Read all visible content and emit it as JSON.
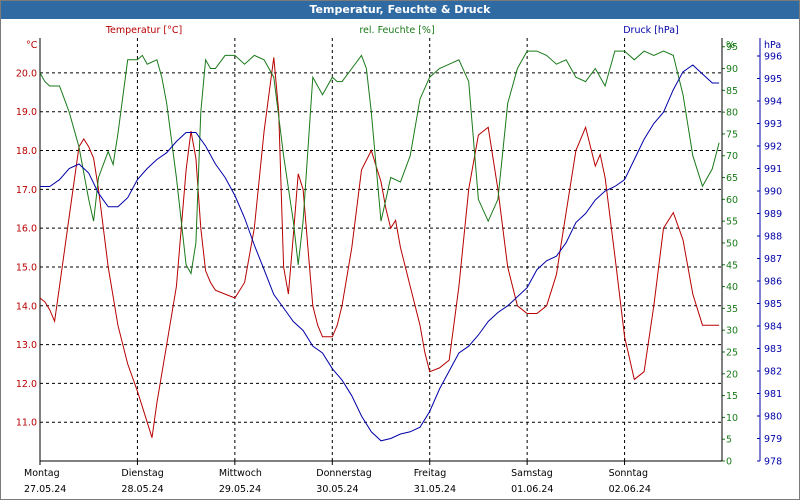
{
  "window": {
    "title": "Temperatur, Feuchte & Druck"
  },
  "colors": {
    "temperature": "#b80000",
    "humidity": "#1a7a1a",
    "pressure": "#0000a8",
    "grid": "#000000",
    "title_bg": "#2f6aa3"
  },
  "chart_data": {
    "type": "line",
    "title": "Temperatur, Feuchte & Druck",
    "x_days": [
      {
        "weekday": "Montag",
        "date": "27.05.24"
      },
      {
        "weekday": "Dienstag",
        "date": "28.05.24"
      },
      {
        "weekday": "Mittwoch",
        "date": "29.05.24"
      },
      {
        "weekday": "Donnerstag",
        "date": "30.05.24"
      },
      {
        "weekday": "Freitag",
        "date": "31.05.24"
      },
      {
        "weekday": "Samstag",
        "date": "01.06.24"
      },
      {
        "weekday": "Sonntag",
        "date": "02.06.24"
      }
    ],
    "xlim": [
      0,
      7
    ],
    "axes": {
      "temperature": {
        "label": "Temperatur [°C]",
        "unit": "°C",
        "ylim": [
          10.0,
          20.9
        ],
        "ticks": [
          "11.0",
          "12.0",
          "13.0",
          "14.0",
          "15.0",
          "16.0",
          "17.0",
          "18.0",
          "19.0",
          "20.0"
        ]
      },
      "humidity": {
        "label": "rel. Feuchte [%]",
        "unit": "%",
        "ylim": [
          0,
          97
        ],
        "ticks": [
          "0",
          "5",
          "10",
          "15",
          "20",
          "25",
          "30",
          "35",
          "40",
          "45",
          "50",
          "55",
          "60",
          "65",
          "70",
          "75",
          "80",
          "85",
          "90",
          "95"
        ]
      },
      "pressure": {
        "label": "Druck [hPa]",
        "unit": "hPa",
        "ylim": [
          978,
          996.8
        ],
        "ticks": [
          "978",
          "979",
          "980",
          "981",
          "982",
          "983",
          "984",
          "985",
          "986",
          "987",
          "988",
          "989",
          "990",
          "991",
          "992",
          "993",
          "994",
          "995",
          "996"
        ]
      }
    },
    "series": [
      {
        "name": "Temperatur",
        "axis": "temperature",
        "x": [
          0,
          0.05,
          0.1,
          0.15,
          0.2,
          0.3,
          0.4,
          0.45,
          0.5,
          0.55,
          0.6,
          0.7,
          0.8,
          0.9,
          1.0,
          1.1,
          1.15,
          1.2,
          1.3,
          1.4,
          1.5,
          1.55,
          1.6,
          1.65,
          1.7,
          1.75,
          1.8,
          1.9,
          2.0,
          2.1,
          2.2,
          2.3,
          2.4,
          2.45,
          2.5,
          2.55,
          2.6,
          2.65,
          2.7,
          2.75,
          2.8,
          2.85,
          2.9,
          3.0,
          3.05,
          3.1,
          3.2,
          3.3,
          3.4,
          3.45,
          3.5,
          3.55,
          3.6,
          3.65,
          3.7,
          3.8,
          3.9,
          3.95,
          4.0,
          4.1,
          4.2,
          4.3,
          4.4,
          4.5,
          4.6,
          4.7,
          4.8,
          4.9,
          5.0,
          5.1,
          5.2,
          5.3,
          5.35,
          5.4,
          5.5,
          5.6,
          5.7,
          5.75,
          5.8,
          5.9,
          6.0,
          6.1,
          6.2,
          6.3,
          6.4,
          6.5,
          6.6,
          6.7,
          6.8,
          6.9,
          6.97
        ],
        "values": [
          14.2,
          14.1,
          13.9,
          13.6,
          14.5,
          16.3,
          18.1,
          18.3,
          18.1,
          17.8,
          17.0,
          15.0,
          13.5,
          12.5,
          11.8,
          11.0,
          10.6,
          11.5,
          13.0,
          14.5,
          17.5,
          18.5,
          17.8,
          16.0,
          14.9,
          14.6,
          14.4,
          14.3,
          14.2,
          14.6,
          16.0,
          18.5,
          20.4,
          19.0,
          15.0,
          14.3,
          15.8,
          17.4,
          17.0,
          15.5,
          14.0,
          13.5,
          13.2,
          13.2,
          13.5,
          14.0,
          15.5,
          17.5,
          18.0,
          17.6,
          17.2,
          16.5,
          16.0,
          16.2,
          15.5,
          14.5,
          13.5,
          12.8,
          12.3,
          12.4,
          12.6,
          14.5,
          17.0,
          18.4,
          18.6,
          17.0,
          15.0,
          14.0,
          13.8,
          13.8,
          14.0,
          14.8,
          15.6,
          16.4,
          18.0,
          18.6,
          17.6,
          17.9,
          17.3,
          15.3,
          13.2,
          12.1,
          12.3,
          14.0,
          16.0,
          16.4,
          15.7,
          14.3,
          13.5,
          13.5,
          13.5
        ]
      },
      {
        "name": "rel. Feuchte",
        "axis": "humidity",
        "x": [
          0,
          0.05,
          0.1,
          0.2,
          0.25,
          0.3,
          0.4,
          0.5,
          0.55,
          0.6,
          0.7,
          0.75,
          0.8,
          0.9,
          1.0,
          1.05,
          1.1,
          1.2,
          1.25,
          1.3,
          1.4,
          1.5,
          1.55,
          1.6,
          1.65,
          1.7,
          1.75,
          1.8,
          1.9,
          2.0,
          2.1,
          2.2,
          2.3,
          2.4,
          2.5,
          2.6,
          2.65,
          2.7,
          2.8,
          2.9,
          3.0,
          3.05,
          3.1,
          3.2,
          3.3,
          3.35,
          3.4,
          3.5,
          3.55,
          3.6,
          3.7,
          3.8,
          3.9,
          4.0,
          4.1,
          4.2,
          4.3,
          4.4,
          4.5,
          4.6,
          4.7,
          4.8,
          4.9,
          5.0,
          5.1,
          5.2,
          5.3,
          5.4,
          5.5,
          5.6,
          5.7,
          5.8,
          5.9,
          6.0,
          6.1,
          6.2,
          6.3,
          6.4,
          6.5,
          6.6,
          6.7,
          6.8,
          6.9,
          6.97
        ],
        "values": [
          89,
          87,
          86,
          86,
          83,
          80,
          72,
          60,
          55,
          65,
          71,
          68,
          75,
          92,
          92,
          93,
          91,
          92,
          88,
          82,
          65,
          45,
          43,
          50,
          80,
          92,
          90,
          90,
          93,
          93,
          91,
          93,
          92,
          88,
          70,
          55,
          45,
          55,
          88,
          84,
          88,
          87,
          87,
          90,
          93,
          90,
          80,
          55,
          60,
          65,
          64,
          70,
          83,
          88,
          90,
          91,
          92,
          87,
          60,
          55,
          60,
          82,
          90,
          94,
          94,
          93,
          91,
          92,
          88,
          87,
          90,
          86,
          94,
          94,
          92,
          94,
          93,
          94,
          93,
          84,
          70,
          63,
          67,
          73
        ]
      },
      {
        "name": "Druck",
        "axis": "pressure",
        "x": [
          0,
          0.1,
          0.2,
          0.3,
          0.4,
          0.5,
          0.6,
          0.7,
          0.8,
          0.9,
          1.0,
          1.1,
          1.2,
          1.3,
          1.4,
          1.5,
          1.6,
          1.7,
          1.8,
          1.9,
          2.0,
          2.1,
          2.2,
          2.3,
          2.4,
          2.5,
          2.6,
          2.7,
          2.8,
          2.9,
          3.0,
          3.1,
          3.2,
          3.3,
          3.4,
          3.5,
          3.6,
          3.7,
          3.8,
          3.9,
          4.0,
          4.1,
          4.2,
          4.3,
          4.4,
          4.5,
          4.6,
          4.7,
          4.8,
          4.9,
          5.0,
          5.1,
          5.2,
          5.3,
          5.4,
          5.5,
          5.6,
          5.7,
          5.8,
          5.9,
          6.0,
          6.1,
          6.2,
          6.3,
          6.4,
          6.5,
          6.6,
          6.7,
          6.8,
          6.9,
          6.97
        ],
        "values": [
          990.2,
          990.2,
          990.5,
          991.0,
          991.2,
          990.8,
          989.9,
          989.3,
          989.3,
          989.7,
          990.5,
          991.0,
          991.4,
          991.7,
          992.2,
          992.6,
          992.6,
          992.0,
          991.2,
          990.6,
          989.8,
          988.8,
          987.6,
          986.5,
          985.4,
          984.8,
          984.2,
          983.8,
          983.1,
          982.8,
          982.1,
          981.6,
          980.9,
          980.0,
          979.3,
          978.9,
          979.0,
          979.2,
          979.3,
          979.5,
          980.2,
          981.2,
          982.0,
          982.8,
          983.1,
          983.6,
          984.2,
          984.6,
          984.9,
          985.3,
          985.7,
          986.5,
          986.9,
          987.1,
          987.7,
          988.6,
          989.0,
          989.6,
          990.0,
          990.2,
          990.5,
          991.4,
          992.3,
          993.0,
          993.5,
          994.5,
          995.3,
          995.6,
          995.2,
          994.8,
          994.8
        ]
      }
    ]
  }
}
